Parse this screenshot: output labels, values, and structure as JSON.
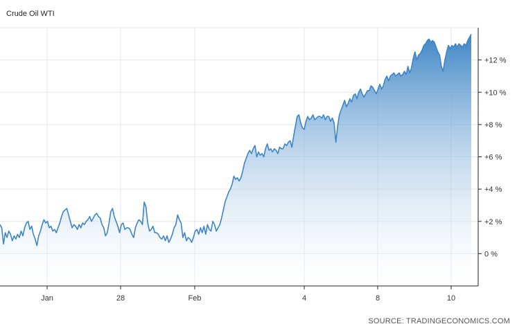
{
  "chart_data": {
    "type": "area",
    "title": "Crude Oil WTI",
    "source": "SOURCE: TRADINGECONOMICS.COM",
    "ylim": [
      -2,
      14
    ],
    "y_ticks": [
      {
        "value": 0,
        "label": "0 %"
      },
      {
        "value": 2,
        "label": "+2 %"
      },
      {
        "value": 4,
        "label": "+4 %"
      },
      {
        "value": 6,
        "label": "+6 %"
      },
      {
        "value": 8,
        "label": "+8 %"
      },
      {
        "value": 10,
        "label": "+10 %"
      },
      {
        "value": 12,
        "label": "+12 %"
      }
    ],
    "x_ticks": [
      "Jan",
      "28",
      "Feb",
      "4",
      "8",
      "10"
    ],
    "grid": true,
    "legend": "none",
    "colors": {
      "line": "#3d85c6",
      "fill_top": "#3d85c6",
      "fill_bottom": "#ffffff"
    },
    "series": [
      {
        "values": [
          1.8,
          1.6,
          0.6,
          1.3,
          1.0,
          1.4,
          1.2,
          0.8,
          1.1,
          0.9,
          1.2,
          1.0,
          1.4,
          1.1,
          1.6,
          1.9,
          2.0,
          1.5,
          1.7,
          1.2,
          0.9,
          0.5,
          1.1,
          1.4,
          1.8,
          2.1,
          1.9,
          2.0,
          1.6,
          1.7,
          1.4,
          1.5,
          1.3,
          1.6,
          1.9,
          2.3,
          2.6,
          2.7,
          2.8,
          2.4,
          2.0,
          1.6,
          1.8,
          1.7,
          1.5,
          1.8,
          1.6,
          1.9,
          1.8,
          2.0,
          2.1,
          2.3,
          2.0,
          2.2,
          2.4,
          2.5,
          2.3,
          2.2,
          1.8,
          1.6,
          1.1,
          1.3,
          1.9,
          2.6,
          2.8,
          2.3,
          2.0,
          1.7,
          1.3,
          1.8,
          1.9,
          1.5,
          1.6,
          1.6,
          1.5,
          1.2,
          1.0,
          1.6,
          1.9,
          2.1,
          2.0,
          1.8,
          3.2,
          2.9,
          1.9,
          1.4,
          1.5,
          1.7,
          1.3,
          1.3,
          1.2,
          1.0,
          0.9,
          1.1,
          0.8,
          1.1,
          0.7,
          0.9,
          1.2,
          1.6,
          1.8,
          2.4,
          2.1,
          1.9,
          1.0,
          1.3,
          0.8,
          1.0,
          0.9,
          0.7,
          1.0,
          1.4,
          1.5,
          1.2,
          1.6,
          1.3,
          1.7,
          1.2,
          1.8,
          1.5,
          1.4,
          2.0,
          1.8,
          1.4,
          1.6,
          1.8,
          2.2,
          2.7,
          3.2,
          3.5,
          3.8,
          4.0,
          4.3,
          4.8,
          4.6,
          4.7,
          4.5,
          4.7,
          5.1,
          5.6,
          5.9,
          6.2,
          6.4,
          6.2,
          6.5,
          6.7,
          6.0,
          6.3,
          6.1,
          6.2,
          6.0,
          6.5,
          6.8,
          6.4,
          6.5,
          6.3,
          6.5,
          6.4,
          6.2,
          6.6,
          6.5,
          6.5,
          6.8,
          6.7,
          6.9,
          7.0,
          6.6,
          7.3,
          7.9,
          8.5,
          8.6,
          8.1,
          7.8,
          7.7,
          8.2,
          8.5,
          8.3,
          8.4,
          8.6,
          8.3,
          8.4,
          8.5,
          8.5,
          8.4,
          8.6,
          8.3,
          8.5,
          8.5,
          8.2,
          8.4,
          8.1,
          6.9,
          7.9,
          8.6,
          8.9,
          9.2,
          9.5,
          9.1,
          9.3,
          9.6,
          9.4,
          9.8,
          9.9,
          9.6,
          10.0,
          10.2,
          9.9,
          9.7,
          9.9,
          10.1,
          10.1,
          10.4,
          10.3,
          10.1,
          9.9,
          10.2,
          10.5,
          10.2,
          10.4,
          10.8,
          11.0,
          10.7,
          11.0,
          11.1,
          11.2,
          11.0,
          11.1,
          11.2,
          11.0,
          11.1,
          11.3,
          11.1,
          11.6,
          11.2,
          11.5,
          12.1,
          12.5,
          12.0,
          12.3,
          12.4,
          12.6,
          12.9,
          13.0,
          13.2,
          13.3,
          13.1,
          13.2,
          13.1,
          12.8,
          12.5,
          12.3,
          11.6,
          11.3,
          12.0,
          12.5,
          12.9,
          12.7,
          12.9,
          12.8,
          13.0,
          12.8,
          13.0,
          12.9,
          12.8,
          13.0,
          12.9,
          13.2,
          13.4,
          13.6
        ]
      }
    ]
  }
}
